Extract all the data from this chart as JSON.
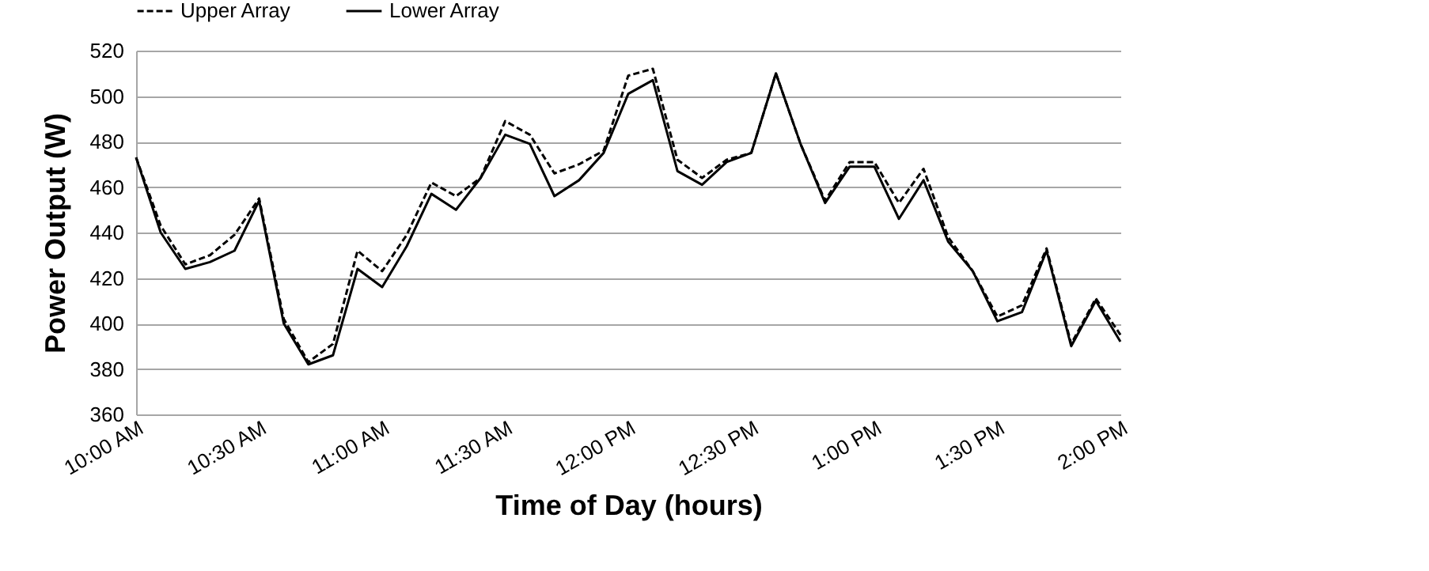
{
  "chart_data": {
    "type": "line",
    "xlabel": "Time of Day (hours)",
    "ylabel": "Power Output (W)",
    "categories": [
      "10:00 AM",
      null,
      null,
      null,
      null,
      "10:30 AM",
      null,
      null,
      null,
      null,
      "11:00 AM",
      null,
      null,
      null,
      null,
      "11:30 AM",
      null,
      null,
      null,
      null,
      "12:00 PM",
      null,
      null,
      null,
      null,
      "12:30 PM",
      null,
      null,
      null,
      null,
      "1:00 PM",
      null,
      null,
      null,
      null,
      "1:30 PM",
      null,
      null,
      null,
      null,
      "2:00 PM"
    ],
    "series": [
      {
        "name": "Upper Array",
        "color": "#000000",
        "line_style": "dashed",
        "values": [
          473,
          443,
          426,
          430,
          439,
          455,
          402,
          383,
          391,
          432,
          423,
          439,
          462,
          456,
          464,
          489,
          483,
          466,
          470,
          476,
          509,
          512,
          472,
          464,
          472,
          475,
          510,
          479,
          454,
          471,
          471,
          453,
          468,
          438,
          423,
          403,
          408,
          433,
          391,
          411,
          395
        ]
      },
      {
        "name": "Lower Array",
        "color": "#000000",
        "line_style": "solid",
        "values": [
          473,
          440,
          424,
          427,
          432,
          454,
          400,
          382,
          386,
          424,
          416,
          434,
          457,
          450,
          464,
          483,
          479,
          456,
          463,
          475,
          501,
          507,
          467,
          461,
          471,
          475,
          510,
          479,
          453,
          469,
          469,
          446,
          463,
          436,
          423,
          401,
          405,
          432,
          390,
          410,
          392
        ]
      }
    ],
    "ylim": [
      360,
      520
    ],
    "yticks": [
      360,
      380,
      400,
      420,
      440,
      460,
      480,
      500,
      520
    ],
    "grid": "y",
    "legend": "top",
    "marker": "none"
  }
}
